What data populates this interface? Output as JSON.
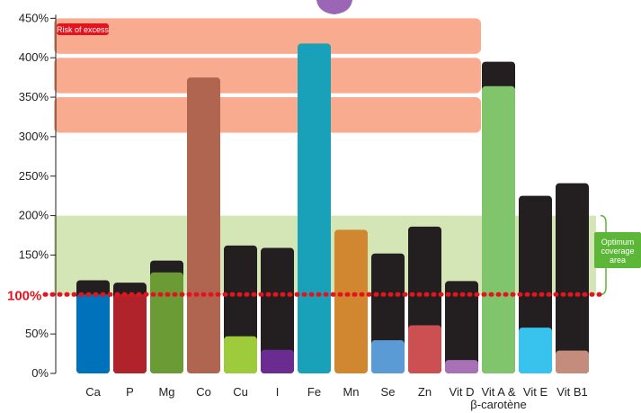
{
  "chart_data": {
    "type": "bar",
    "ylim": [
      0,
      450
    ],
    "yticks": [
      {
        "value": 0,
        "label": "0%"
      },
      {
        "value": 50,
        "label": "50%"
      },
      {
        "value": 100,
        "label": "100%"
      },
      {
        "value": 150,
        "label": "150%"
      },
      {
        "value": 200,
        "label": "200%"
      },
      {
        "value": 250,
        "label": "250%"
      },
      {
        "value": 300,
        "label": "300%"
      },
      {
        "value": 350,
        "label": "350%"
      },
      {
        "value": 400,
        "label": "400%"
      },
      {
        "value": 450,
        "label": "450%"
      }
    ],
    "reference_line": {
      "value": 100,
      "label": "100%",
      "color": "#e3141e"
    },
    "zones": [
      {
        "label": "Risk of excess",
        "from": 300,
        "to": 450,
        "color": "#f9ab90",
        "badge_color": "#e3141e"
      },
      {
        "label": "Optimum coverage area",
        "from": 100,
        "to": 200,
        "color": "#d4e6b5",
        "badge_color": "#5cb638"
      }
    ],
    "categories": [
      "Ca",
      "P",
      "Mg",
      "Co",
      "Cu",
      "I",
      "Fe",
      "Mn",
      "Se",
      "Zn",
      "Vit D",
      "Vit A & β-carotène",
      "Vit E",
      "Vit B1"
    ],
    "category_label_lines": [
      [
        "Ca"
      ],
      [
        "P"
      ],
      [
        "Mg"
      ],
      [
        "Co"
      ],
      [
        "Cu"
      ],
      [
        "I"
      ],
      [
        "Fe"
      ],
      [
        "Mn"
      ],
      [
        "Se"
      ],
      [
        "Zn"
      ],
      [
        "Vit D"
      ],
      [
        "Vit A &",
        "β-carotène"
      ],
      [
        "Vit E"
      ],
      [
        "Vit B1"
      ]
    ],
    "total_bar_color": "#231f20",
    "totals": [
      118,
      115,
      143,
      null,
      162,
      159,
      null,
      null,
      152,
      186,
      117,
      395,
      225,
      241
    ],
    "values": [
      100,
      100,
      128,
      375,
      47,
      30,
      418,
      182,
      42,
      61,
      17,
      364,
      58,
      29
    ],
    "colors": [
      "#0071bb",
      "#b1232a",
      "#6a9b34",
      "#b06550",
      "#9ecb3c",
      "#6b2c91",
      "#1aa1ba",
      "#d18630",
      "#5b9bd5",
      "#cc4f51",
      "#a870b5",
      "#80c46c",
      "#37c3ee",
      "#c48c7a"
    ]
  }
}
